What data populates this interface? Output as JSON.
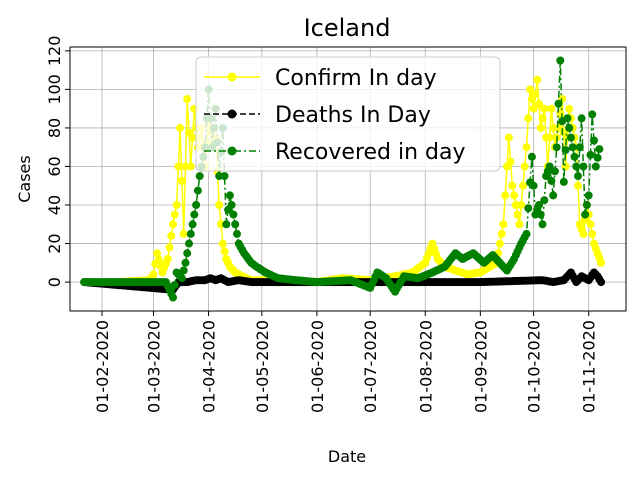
{
  "chart_data": {
    "type": "line",
    "title": "Iceland",
    "xlabel": "Date",
    "ylabel": "Cases",
    "x_range": [
      "2020-01-22",
      "2020-11-14"
    ],
    "ylim": [
      -15,
      122
    ],
    "x_ticks": [
      "01-02-2020",
      "01-03-2020",
      "01-04-2020",
      "01-05-2020",
      "01-06-2020",
      "01-07-2020",
      "01-08-2020",
      "01-09-2020",
      "01-10-2020",
      "01-11-2020"
    ],
    "y_ticks": [
      0,
      20,
      40,
      60,
      80,
      100,
      120
    ],
    "grid": true,
    "legend": "top-center",
    "series": [
      {
        "name": "Confirm In day",
        "color": "#ffff00",
        "linestyle": "solid",
        "points": [
          [
            "2020-01-22",
            0
          ],
          [
            "2020-02-10",
            0
          ],
          [
            "2020-02-28",
            1
          ],
          [
            "2020-03-01",
            4
          ],
          [
            "2020-03-03",
            15
          ],
          [
            "2020-03-06",
            5
          ],
          [
            "2020-03-09",
            12
          ],
          [
            "2020-03-12",
            30
          ],
          [
            "2020-03-14",
            40
          ],
          [
            "2020-03-16",
            80
          ],
          [
            "2020-03-18",
            25
          ],
          [
            "2020-03-20",
            95
          ],
          [
            "2020-03-22",
            60
          ],
          [
            "2020-03-24",
            90
          ],
          [
            "2020-03-26",
            70
          ],
          [
            "2020-03-28",
            80
          ],
          [
            "2020-03-30",
            60
          ],
          [
            "2020-04-01",
            85
          ],
          [
            "2020-04-03",
            70
          ],
          [
            "2020-04-05",
            75
          ],
          [
            "2020-04-07",
            40
          ],
          [
            "2020-04-09",
            20
          ],
          [
            "2020-04-11",
            12
          ],
          [
            "2020-04-13",
            8
          ],
          [
            "2020-04-16",
            5
          ],
          [
            "2020-04-20",
            3
          ],
          [
            "2020-04-25",
            1
          ],
          [
            "2020-05-01",
            1
          ],
          [
            "2020-05-10",
            0
          ],
          [
            "2020-06-01",
            0
          ],
          [
            "2020-06-15",
            2
          ],
          [
            "2020-07-01",
            1
          ],
          [
            "2020-07-15",
            3
          ],
          [
            "2020-07-25",
            5
          ],
          [
            "2020-08-01",
            10
          ],
          [
            "2020-08-05",
            20
          ],
          [
            "2020-08-08",
            12
          ],
          [
            "2020-08-12",
            8
          ],
          [
            "2020-08-18",
            6
          ],
          [
            "2020-08-25",
            4
          ],
          [
            "2020-09-01",
            5
          ],
          [
            "2020-09-10",
            10
          ],
          [
            "2020-09-14",
            30
          ],
          [
            "2020-09-17",
            75
          ],
          [
            "2020-09-19",
            50
          ],
          [
            "2020-09-21",
            40
          ],
          [
            "2020-09-23",
            30
          ],
          [
            "2020-09-25",
            50
          ],
          [
            "2020-09-27",
            70
          ],
          [
            "2020-09-29",
            100
          ],
          [
            "2020-10-01",
            90
          ],
          [
            "2020-10-03",
            105
          ],
          [
            "2020-10-05",
            80
          ],
          [
            "2020-10-07",
            90
          ],
          [
            "2020-10-09",
            60
          ],
          [
            "2020-10-11",
            90
          ],
          [
            "2020-10-13",
            70
          ],
          [
            "2020-10-15",
            80
          ],
          [
            "2020-10-17",
            95
          ],
          [
            "2020-10-19",
            60
          ],
          [
            "2020-10-21",
            90
          ],
          [
            "2020-10-23",
            80
          ],
          [
            "2020-10-25",
            70
          ],
          [
            "2020-10-27",
            30
          ],
          [
            "2020-10-29",
            25
          ],
          [
            "2020-10-31",
            40
          ],
          [
            "2020-11-02",
            30
          ],
          [
            "2020-11-04",
            20
          ],
          [
            "2020-11-06",
            15
          ],
          [
            "2020-11-08",
            10
          ]
        ]
      },
      {
        "name": "Deaths In Day",
        "color": "#000000",
        "linestyle": "dashed",
        "points": [
          [
            "2020-01-22",
            0
          ],
          [
            "2020-03-12",
            -4
          ],
          [
            "2020-03-15",
            0
          ],
          [
            "2020-03-20",
            0
          ],
          [
            "2020-03-25",
            1
          ],
          [
            "2020-03-30",
            1
          ],
          [
            "2020-04-02",
            2
          ],
          [
            "2020-04-05",
            1
          ],
          [
            "2020-04-08",
            2
          ],
          [
            "2020-04-12",
            0
          ],
          [
            "2020-04-18",
            1
          ],
          [
            "2020-04-25",
            0
          ],
          [
            "2020-06-01",
            0
          ],
          [
            "2020-08-01",
            0
          ],
          [
            "2020-09-01",
            0
          ],
          [
            "2020-10-06",
            1
          ],
          [
            "2020-10-12",
            0
          ],
          [
            "2020-10-18",
            1
          ],
          [
            "2020-10-22",
            5
          ],
          [
            "2020-10-25",
            0
          ],
          [
            "2020-10-28",
            3
          ],
          [
            "2020-11-01",
            1
          ],
          [
            "2020-11-04",
            5
          ],
          [
            "2020-11-06",
            3
          ],
          [
            "2020-11-08",
            0
          ]
        ]
      },
      {
        "name": "Recovered in day",
        "color": "#008000",
        "linestyle": "dashdot",
        "points": [
          [
            "2020-01-22",
            0
          ],
          [
            "2020-03-08",
            0
          ],
          [
            "2020-03-12",
            -8
          ],
          [
            "2020-03-14",
            5
          ],
          [
            "2020-03-17",
            2
          ],
          [
            "2020-03-19",
            10
          ],
          [
            "2020-03-22",
            25
          ],
          [
            "2020-03-25",
            40
          ],
          [
            "2020-03-27",
            55
          ],
          [
            "2020-03-30",
            70
          ],
          [
            "2020-04-01",
            100
          ],
          [
            "2020-04-03",
            70
          ],
          [
            "2020-04-05",
            90
          ],
          [
            "2020-04-07",
            55
          ],
          [
            "2020-04-09",
            80
          ],
          [
            "2020-04-11",
            30
          ],
          [
            "2020-04-13",
            45
          ],
          [
            "2020-04-15",
            35
          ],
          [
            "2020-04-18",
            20
          ],
          [
            "2020-04-21",
            15
          ],
          [
            "2020-04-25",
            10
          ],
          [
            "2020-04-28",
            8
          ],
          [
            "2020-05-03",
            5
          ],
          [
            "2020-05-10",
            2
          ],
          [
            "2020-05-20",
            1
          ],
          [
            "2020-06-01",
            0
          ],
          [
            "2020-06-20",
            1
          ],
          [
            "2020-07-01",
            -3
          ],
          [
            "2020-07-05",
            5
          ],
          [
            "2020-07-10",
            2
          ],
          [
            "2020-07-15",
            -5
          ],
          [
            "2020-07-20",
            3
          ],
          [
            "2020-07-28",
            2
          ],
          [
            "2020-08-05",
            5
          ],
          [
            "2020-08-12",
            8
          ],
          [
            "2020-08-18",
            15
          ],
          [
            "2020-08-22",
            12
          ],
          [
            "2020-08-28",
            15
          ],
          [
            "2020-09-03",
            10
          ],
          [
            "2020-09-08",
            14
          ],
          [
            "2020-09-12",
            10
          ],
          [
            "2020-09-16",
            6
          ],
          [
            "2020-09-20",
            12
          ],
          [
            "2020-09-24",
            20
          ],
          [
            "2020-09-27",
            25
          ],
          [
            "2020-09-30",
            65
          ],
          [
            "2020-10-02",
            35
          ],
          [
            "2020-10-04",
            40
          ],
          [
            "2020-10-06",
            30
          ],
          [
            "2020-10-08",
            55
          ],
          [
            "2020-10-10",
            60
          ],
          [
            "2020-10-12",
            45
          ],
          [
            "2020-10-14",
            70
          ],
          [
            "2020-10-16",
            115
          ],
          [
            "2020-10-18",
            52
          ],
          [
            "2020-10-20",
            85
          ],
          [
            "2020-10-22",
            75
          ],
          [
            "2020-10-24",
            65
          ],
          [
            "2020-10-26",
            55
          ],
          [
            "2020-10-28",
            85
          ],
          [
            "2020-10-30",
            35
          ],
          [
            "2020-11-01",
            45
          ],
          [
            "2020-11-03",
            87
          ],
          [
            "2020-11-05",
            60
          ],
          [
            "2020-11-07",
            69
          ]
        ]
      }
    ]
  }
}
